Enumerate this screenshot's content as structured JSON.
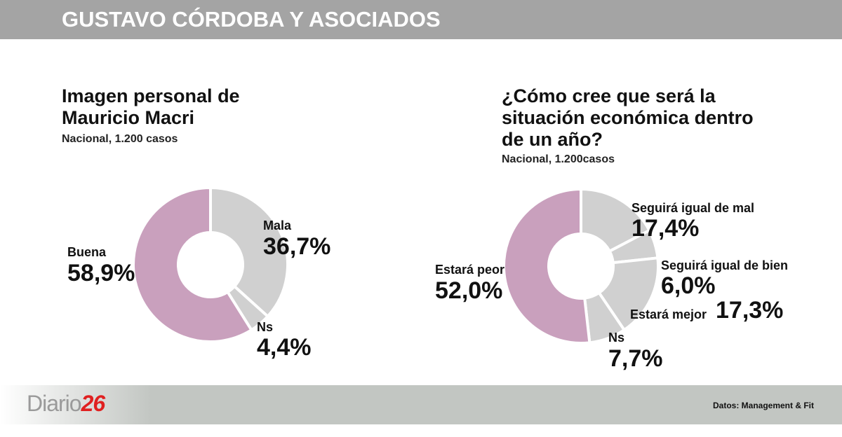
{
  "header": {
    "title": "GUSTAVO CÓRDOBA Y ASOCIADOS"
  },
  "footer": {
    "logo_text": "Diario",
    "logo_number": "26",
    "source": "Datos: Management & Fit"
  },
  "colors": {
    "header_bg": "#a4a4a4",
    "pink": "#c9a0bd",
    "grey": "#d0d0d0",
    "logo_red": "#e02020"
  },
  "chart_data": [
    {
      "type": "pie",
      "variant": "donut",
      "title": "Imagen personal de Mauricio Macri",
      "subtitle": "Nacional, 1.200 casos",
      "slices": [
        {
          "label": "Mala",
          "value": 36.7,
          "display": "36,7%",
          "color": "#d0d0d0"
        },
        {
          "label": "Ns",
          "value": 4.4,
          "display": "4,4%",
          "color": "#d0d0d0"
        },
        {
          "label": "Buena",
          "value": 58.9,
          "display": "58,9%",
          "color": "#c9a0bd"
        }
      ]
    },
    {
      "type": "pie",
      "variant": "donut",
      "title": "¿Cómo cree que será la situación económica dentro de un año?",
      "subtitle": "Nacional, 1.200casos",
      "slices": [
        {
          "label": "Seguirá igual de mal",
          "value": 17.4,
          "display": "17,4%",
          "color": "#d0d0d0"
        },
        {
          "label": "Seguirá igual de bien",
          "value": 6.0,
          "display": "6,0%",
          "color": "#d0d0d0"
        },
        {
          "label": "Estará mejor",
          "value": 17.3,
          "display": "17,3%",
          "color": "#d0d0d0"
        },
        {
          "label": "Ns",
          "value": 7.7,
          "display": "7,7%",
          "color": "#d0d0d0"
        },
        {
          "label": "Estará peor",
          "value": 52.0,
          "display": "52,0%",
          "color": "#c9a0bd"
        }
      ]
    }
  ]
}
